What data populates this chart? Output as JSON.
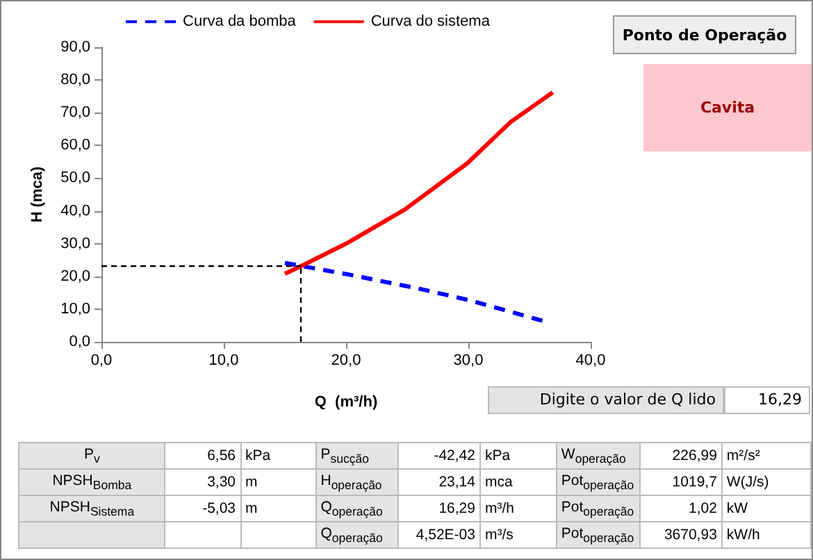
{
  "chart_data": {
    "type": "line",
    "xlabel": "Q  (m³/h)",
    "ylabel": "H (mca)",
    "legend": "top",
    "grid": false,
    "marker": "none",
    "xlim": [
      0,
      40
    ],
    "xticks": [
      {
        "value": 0,
        "label": "0,0"
      },
      {
        "value": 10,
        "label": "10,0"
      },
      {
        "value": 20,
        "label": "20,0"
      },
      {
        "value": 30,
        "label": "30,0"
      },
      {
        "value": 40,
        "label": "40,0"
      }
    ],
    "ylim": [
      0,
      90
    ],
    "yticks": [
      {
        "value": 0,
        "label": "0,0"
      },
      {
        "value": 10,
        "label": "10,0"
      },
      {
        "value": 20,
        "label": "20,0"
      },
      {
        "value": 30,
        "label": "30,0"
      },
      {
        "value": 40,
        "label": "40,0"
      },
      {
        "value": 50,
        "label": "50,0"
      },
      {
        "value": 60,
        "label": "60,0"
      },
      {
        "value": 70,
        "label": "70,0"
      },
      {
        "value": 80,
        "label": "80,0"
      },
      {
        "value": 90,
        "label": "90,0"
      }
    ],
    "series": [
      {
        "name": "Curva da bomba",
        "color": "#0000ff",
        "line_style": "dashed",
        "x": [
          15.0,
          20.3,
          25.9,
          30.1,
          36.1
        ],
        "values": [
          24.1,
          20.5,
          16.3,
          12.7,
          6.4
        ]
      },
      {
        "name": "Curva do sistema",
        "color": "#ff0000",
        "line_style": "solid",
        "x": [
          15.0,
          16.3,
          20.1,
          24.8,
          29.9,
          33.5,
          36.9
        ],
        "values": [
          20.8,
          23.1,
          30.2,
          40.4,
          54.5,
          67.3,
          76.2
        ]
      }
    ],
    "ref_lines": [
      {
        "axis": "x",
        "value": 16.29,
        "color": "#000000",
        "line_style": "dashed"
      },
      {
        "axis": "y",
        "value": 23.14,
        "color": "#000000",
        "line_style": "dashed"
      }
    ],
    "annotations": [
      "Ponto de Operação",
      "Cavita",
      "Digite o valor de Q lido",
      "16,29",
      "P$_{v}$",
      "6,56",
      "kPa",
      "P$_{sucção}$",
      "-42,42",
      "kPa",
      "W$_{operação}$",
      "226,99",
      "m²/s²",
      "NPSH$_{Bomba}$",
      "3,30",
      "m",
      "H$_{operação}$",
      "23,14",
      "mca",
      "Pot$_{operação}$",
      "1019,7",
      "W(J/s)",
      "NPSH$_{Sistema}$",
      "-5,03",
      "m",
      "Q$_{operação}$",
      "16,29",
      "m³/h",
      "Pot$_{operação}$",
      "1,02",
      "kW",
      "Q$_{operação}$",
      "4,52E-03",
      "m³/s",
      "Pot$_{operação}$",
      "3670,93",
      "kW/h"
    ]
  }
}
